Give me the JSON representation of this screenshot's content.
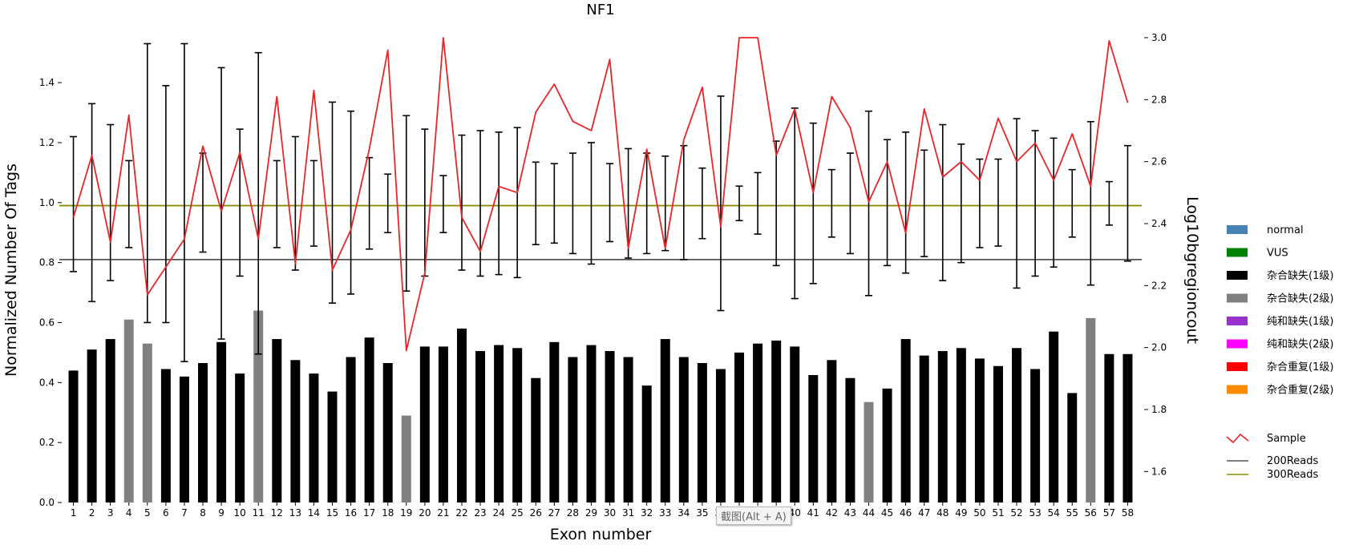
{
  "chart_data": {
    "type": "bar",
    "title": "NF1",
    "xlabel": "Exon number",
    "ylabel": "Normalized Number Of Tags",
    "y2label": "Log10bgregioncout",
    "ylim": [
      0,
      1.55
    ],
    "y2lim": [
      1.5,
      3.0
    ],
    "yticks": [
      "0.0",
      "0.2",
      "0.4",
      "0.6",
      "0.8",
      "1.0",
      "1.2",
      "1.4"
    ],
    "y2ticks": [
      "1.6",
      "1.8",
      "2.0",
      "2.2",
      "2.4",
      "2.6",
      "2.8",
      "3.0"
    ],
    "categories": [
      "1",
      "2",
      "3",
      "4",
      "5",
      "6",
      "7",
      "8",
      "9",
      "10",
      "11",
      "12",
      "13",
      "14",
      "15",
      "16",
      "17",
      "18",
      "19",
      "20",
      "21",
      "22",
      "23",
      "24",
      "25",
      "26",
      "27",
      "28",
      "29",
      "30",
      "31",
      "32",
      "33",
      "34",
      "35",
      "36",
      "37",
      "38",
      "39",
      "40",
      "41",
      "42",
      "43",
      "44",
      "45",
      "46",
      "47",
      "48",
      "49",
      "50",
      "51",
      "52",
      "53",
      "54",
      "55",
      "56",
      "57",
      "58"
    ],
    "bar_values": [
      0.44,
      0.51,
      0.545,
      0.61,
      0.53,
      0.445,
      0.42,
      0.465,
      0.535,
      0.43,
      0.64,
      0.545,
      0.475,
      0.43,
      0.37,
      0.485,
      0.55,
      0.465,
      0.29,
      0.52,
      0.52,
      0.58,
      0.505,
      0.525,
      0.515,
      0.415,
      0.535,
      0.485,
      0.525,
      0.505,
      0.485,
      0.39,
      0.545,
      0.485,
      0.465,
      0.445,
      0.5,
      0.53,
      0.54,
      0.52,
      0.425,
      0.475,
      0.415,
      0.335,
      0.38,
      0.545,
      0.49,
      0.505,
      0.515,
      0.48,
      0.455,
      0.515,
      0.445,
      0.57,
      0.365,
      0.615,
      0.495,
      0.495
    ],
    "bar_category": [
      "杂合缺失(1级)",
      "杂合缺失(1级)",
      "杂合缺失(1级)",
      "杂合缺失(2级)",
      "杂合缺失(2级)",
      "杂合缺失(1级)",
      "杂合缺失(1级)",
      "杂合缺失(1级)",
      "杂合缺失(1级)",
      "杂合缺失(1级)",
      "杂合缺失(2级)",
      "杂合缺失(1级)",
      "杂合缺失(1级)",
      "杂合缺失(1级)",
      "杂合缺失(1级)",
      "杂合缺失(1级)",
      "杂合缺失(1级)",
      "杂合缺失(1级)",
      "杂合缺失(2级)",
      "杂合缺失(1级)",
      "杂合缺失(1级)",
      "杂合缺失(1级)",
      "杂合缺失(1级)",
      "杂合缺失(1级)",
      "杂合缺失(1级)",
      "杂合缺失(1级)",
      "杂合缺失(1级)",
      "杂合缺失(1级)",
      "杂合缺失(1级)",
      "杂合缺失(1级)",
      "杂合缺失(1级)",
      "杂合缺失(1级)",
      "杂合缺失(1级)",
      "杂合缺失(1级)",
      "杂合缺失(1级)",
      "杂合缺失(1级)",
      "杂合缺失(1级)",
      "杂合缺失(1级)",
      "杂合缺失(1级)",
      "杂合缺失(1级)",
      "杂合缺失(1级)",
      "杂合缺失(1级)",
      "杂合缺失(1级)",
      "杂合缺失(2级)",
      "杂合缺失(1级)",
      "杂合缺失(1级)",
      "杂合缺失(1级)",
      "杂合缺失(1级)",
      "杂合缺失(1级)",
      "杂合缺失(1级)",
      "杂合缺失(1级)",
      "杂合缺失(1级)",
      "杂合缺失(1级)",
      "杂合缺失(1级)",
      "杂合缺失(1级)",
      "杂合缺失(2级)",
      "杂合缺失(1级)",
      "杂合缺失(1级)"
    ],
    "error_bars": [
      [
        0.77,
        1.22
      ],
      [
        0.67,
        1.33
      ],
      [
        0.74,
        1.26
      ],
      [
        0.85,
        1.14
      ],
      [
        0.6,
        1.53
      ],
      [
        0.6,
        1.39
      ],
      [
        0.47,
        1.53
      ],
      [
        0.835,
        1.165
      ],
      [
        0.545,
        1.45
      ],
      [
        0.755,
        1.245
      ],
      [
        0.495,
        1.5
      ],
      [
        0.85,
        1.14
      ],
      [
        0.775,
        1.22
      ],
      [
        0.855,
        1.14
      ],
      [
        0.665,
        1.335
      ],
      [
        0.695,
        1.305
      ],
      [
        0.845,
        1.15
      ],
      [
        0.9,
        1.095
      ],
      [
        0.705,
        1.29
      ],
      [
        0.755,
        1.245
      ],
      [
        0.9,
        1.09
      ],
      [
        0.775,
        1.225
      ],
      [
        0.755,
        1.24
      ],
      [
        0.76,
        1.235
      ],
      [
        0.75,
        1.25
      ],
      [
        0.86,
        1.135
      ],
      [
        0.865,
        1.13
      ],
      [
        0.83,
        1.165
      ],
      [
        0.795,
        1.2
      ],
      [
        0.87,
        1.13
      ],
      [
        0.815,
        1.18
      ],
      [
        0.83,
        1.165
      ],
      [
        0.84,
        1.155
      ],
      [
        0.81,
        1.19
      ],
      [
        0.88,
        1.115
      ],
      [
        0.64,
        1.355
      ],
      [
        0.94,
        1.055
      ],
      [
        0.895,
        1.1
      ],
      [
        0.79,
        1.205
      ],
      [
        0.68,
        1.315
      ],
      [
        0.73,
        1.265
      ],
      [
        0.885,
        1.11
      ],
      [
        0.83,
        1.165
      ],
      [
        0.69,
        1.305
      ],
      [
        0.79,
        1.21
      ],
      [
        0.765,
        1.235
      ],
      [
        0.82,
        1.175
      ],
      [
        0.74,
        1.26
      ],
      [
        0.8,
        1.195
      ],
      [
        0.85,
        1.145
      ],
      [
        0.855,
        1.145
      ],
      [
        0.715,
        1.28
      ],
      [
        0.755,
        1.24
      ],
      [
        0.785,
        1.215
      ],
      [
        0.885,
        1.11
      ],
      [
        0.725,
        1.27
      ],
      [
        0.925,
        1.07
      ],
      [
        0.805,
        1.19
      ]
    ],
    "series": [
      {
        "name": "Sample",
        "color": "#e8262a",
        "axis": "right",
        "values": [
          2.42,
          2.62,
          2.34,
          2.75,
          2.17,
          2.26,
          2.35,
          2.65,
          2.44,
          2.63,
          2.35,
          2.81,
          2.27,
          2.83,
          2.25,
          2.38,
          2.64,
          2.96,
          1.99,
          2.24,
          3.0,
          2.42,
          2.31,
          2.52,
          2.5,
          2.76,
          2.85,
          2.73,
          2.7,
          2.93,
          2.32,
          2.64,
          2.32,
          2.67,
          2.84,
          2.39,
          3.0,
          3.0,
          2.62,
          2.77,
          2.5,
          2.81,
          2.71,
          2.47,
          2.6,
          2.37,
          2.77,
          2.55,
          2.6,
          2.54,
          2.74,
          2.6,
          2.66,
          2.54,
          2.69,
          2.52,
          2.99,
          2.79
        ]
      },
      {
        "name": "200Reads",
        "color": "#555555",
        "axis": "left",
        "value": 0.81
      },
      {
        "name": "300Reads",
        "color": "#8b8b00",
        "axis": "left",
        "value": 0.99
      }
    ],
    "legend": {
      "position": "right",
      "items": [
        {
          "label": "normal",
          "color": "#4682b4"
        },
        {
          "label": "VUS",
          "color": "#008000"
        },
        {
          "label": "杂合缺失(1级)",
          "color": "#000000"
        },
        {
          "label": "杂合缺失(2级)",
          "color": "#808080"
        },
        {
          "label": "纯和缺失(1级)",
          "color": "#9932cc"
        },
        {
          "label": "纯和缺失(2级)",
          "color": "#ff00ff"
        },
        {
          "label": "杂合重复(1级)",
          "color": "#ff0000"
        },
        {
          "label": "杂合重复(2级)",
          "color": "#ff8c00"
        }
      ],
      "line_items": [
        {
          "label": "Sample",
          "color": "#e8262a",
          "kind": "zigzag"
        },
        {
          "label": "200Reads",
          "color": "#555555",
          "kind": "line"
        },
        {
          "label": "300Reads",
          "color": "#8b8b00",
          "kind": "line"
        }
      ]
    },
    "grid": false
  },
  "overlay": {
    "tooltip_text": "截图(Alt + A)"
  }
}
